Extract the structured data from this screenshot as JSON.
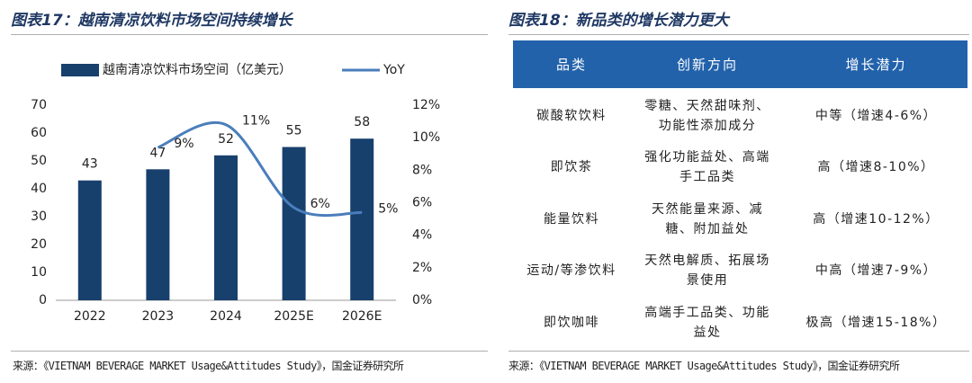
{
  "figure17": {
    "title": "图表17：越南清凉饮料市场空间持续增长",
    "source": "来源：《VIETNAM BEVERAGE MARKET Usage&Attitudes Study》，国金证券研究所"
  },
  "chart_data": {
    "type": "combo",
    "categories": [
      "2022",
      "2023",
      "2024",
      "2025E",
      "2026E"
    ],
    "series": [
      {
        "name": "越南清凉饮料市场空间（亿美元）",
        "type": "bar",
        "color": "#17406d",
        "values": [
          43,
          47,
          52,
          55,
          58
        ]
      },
      {
        "name": "YoY",
        "type": "line",
        "axis": "y2",
        "color": "#4a7ebb",
        "values": [
          null,
          9.4,
          10.8,
          5.7,
          5.4
        ],
        "value_labels": [
          null,
          "9%",
          "11%",
          "6%",
          "5%"
        ]
      }
    ],
    "ylim": [
      0,
      70
    ],
    "yticks": [
      0,
      10,
      20,
      30,
      40,
      50,
      60,
      70
    ],
    "y2lim": [
      0,
      12
    ],
    "y2ticks": [
      {
        "value": 0,
        "label": "0%"
      },
      {
        "value": 2,
        "label": "2%"
      },
      {
        "value": 4,
        "label": "4%"
      },
      {
        "value": 6,
        "label": "6%"
      },
      {
        "value": 8,
        "label": "8%"
      },
      {
        "value": 10,
        "label": "10%"
      },
      {
        "value": 12,
        "label": "12%"
      }
    ],
    "legend": "top"
  },
  "figure18": {
    "title": "图表18：新品类的增长潜力更大",
    "table": {
      "header": [
        "品类",
        "创新方向",
        "增长潜力"
      ],
      "rows": [
        [
          "碳酸软饮料",
          "零糖、天然甜味剂、功能性添加成分",
          "中等（增速4-6%）"
        ],
        [
          "即饮茶",
          "强化功能益处、高端手工品类",
          "高（增速8-10%）"
        ],
        [
          "能量饮料",
          "天然能量来源、减糖、附加益处",
          "高（增速10-12%）"
        ],
        [
          "运动/等渗饮料",
          "天然电解质、拓展场景使用",
          "中高（增速7-9%）"
        ],
        [
          "即饮咖啡",
          "高端手工品类、功能益处",
          "极高（增速15-18%）"
        ]
      ]
    },
    "source": "来源：《VIETNAM BEVERAGE MARKET Usage&Attitudes Study》，国金证券研究所"
  }
}
